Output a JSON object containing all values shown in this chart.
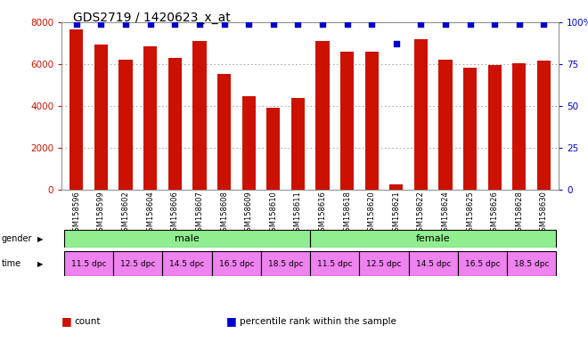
{
  "title": "GDS2719 / 1420623_x_at",
  "samples": [
    "GSM158596",
    "GSM158599",
    "GSM158602",
    "GSM158604",
    "GSM158606",
    "GSM158607",
    "GSM158608",
    "GSM158609",
    "GSM158610",
    "GSM158611",
    "GSM158616",
    "GSM158618",
    "GSM158620",
    "GSM158621",
    "GSM158622",
    "GSM158624",
    "GSM158625",
    "GSM158626",
    "GSM158628",
    "GSM158630"
  ],
  "counts": [
    7650,
    6950,
    6200,
    6850,
    6300,
    7100,
    5550,
    4450,
    3900,
    4400,
    7100,
    6600,
    6600,
    250,
    7200,
    6200,
    5850,
    5950,
    6050,
    6150
  ],
  "percentile": [
    99,
    99,
    99,
    99,
    99,
    99,
    99,
    99,
    99,
    99,
    99,
    99,
    99,
    87,
    99,
    99,
    99,
    99,
    99,
    99
  ],
  "bar_color": "#cc1100",
  "dot_color": "#0000cc",
  "ylim_left": [
    0,
    8000
  ],
  "ylim_right": [
    0,
    100
  ],
  "yticks_left": [
    0,
    2000,
    4000,
    6000,
    8000
  ],
  "yticks_right": [
    0,
    25,
    50,
    75,
    100
  ],
  "ytick_labels_right": [
    "0",
    "25",
    "50",
    "75",
    "100%"
  ],
  "gender_labels": [
    "male",
    "female"
  ],
  "gender_color": "#90ee90",
  "time_labels": [
    "11.5 dpc",
    "12.5 dpc",
    "14.5 dpc",
    "16.5 dpc",
    "18.5 dpc",
    "11.5 dpc",
    "12.5 dpc",
    "14.5 dpc",
    "16.5 dpc",
    "18.5 dpc"
  ],
  "time_color": "#ee82ee",
  "legend_items": [
    {
      "label": "count",
      "color": "#cc1100"
    },
    {
      "label": "percentile rank within the sample",
      "color": "#0000cc"
    }
  ],
  "background_color": "#ffffff",
  "tick_color_left": "#cc1100",
  "tick_color_right": "#0000cc"
}
